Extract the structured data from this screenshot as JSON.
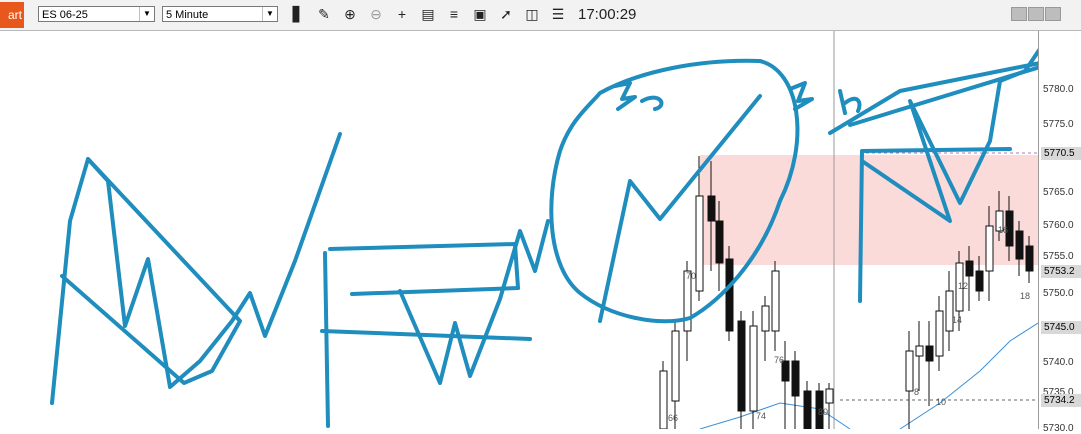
{
  "toolbar": {
    "tab_label": "art",
    "instrument": "ES 06-25",
    "interval": "5 Minute",
    "clock": "17:00:29",
    "tools": [
      "bars-icon",
      "pencil-icon",
      "zoom-in-icon",
      "zoom-out-icon",
      "crosshair-icon",
      "data-box-icon",
      "properties-icon",
      "drawing-tool-icon",
      "strategy-icon",
      "chart-trader-icon",
      "list-icon"
    ]
  },
  "price_axis": {
    "ticks": [
      "5780.0",
      "5775.0",
      "5770.5",
      "5765.0",
      "5760.0",
      "5755.0",
      "5753.2",
      "5750.0",
      "5745.0",
      "5740.0",
      "5735.0",
      "5734.2",
      "5730.0"
    ],
    "tags": [
      {
        "label": "5770.5",
        "color": "#d8d8d8"
      },
      {
        "label": "5753.2",
        "color": "#d8d8d8"
      },
      {
        "label": "5745.0",
        "color": "#d8d8d8"
      },
      {
        "label": "5734.2",
        "color": "#d8d8d8"
      }
    ]
  },
  "bar_labels": [
    "70",
    "76",
    "74",
    "80",
    "66",
    "12",
    "16",
    "14",
    "18",
    "8",
    "10"
  ],
  "annotations": {
    "handwriting_1": "3a",
    "handwriting_2": "3h"
  },
  "colors": {
    "zone": "#fbdada",
    "ink": "#1f8dbd",
    "up_candle": "#ffffff",
    "down_candle": "#111111",
    "ma_line": "#3d8fd6",
    "tab_accent": "#e8581c"
  }
}
